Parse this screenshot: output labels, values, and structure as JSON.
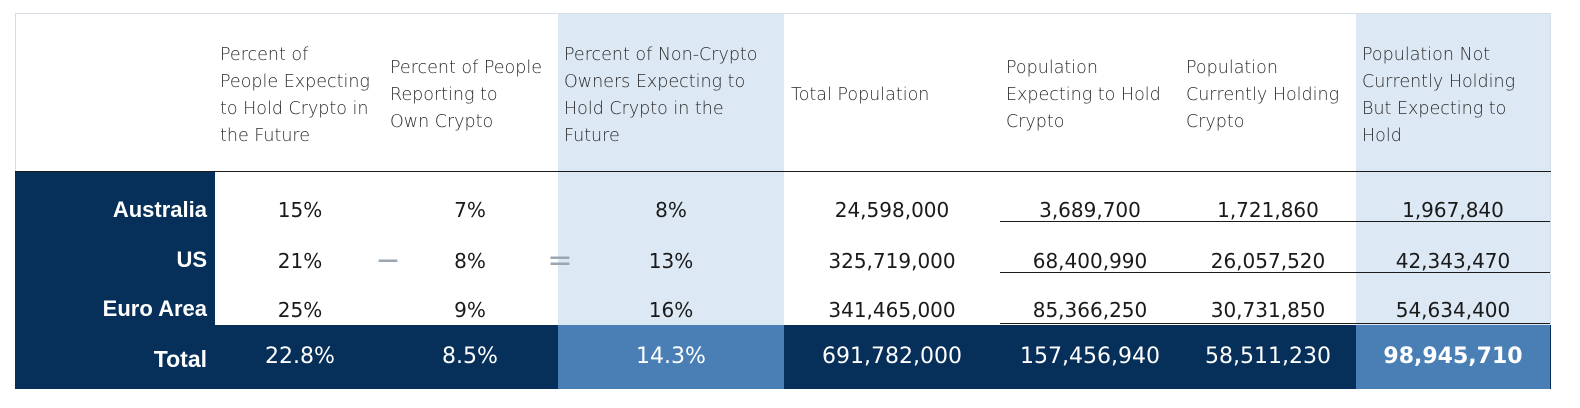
{
  "headers": [
    "",
    "Percent of People Expecting to Hold Crypto in the Future",
    "Percent of People Reporting to Own Crypto",
    "Percent of Non-Crypto Owners Expecting to Hold Crypto in the Future",
    "Total Population",
    "Population Expecting to Hold Crypto",
    "Population Currently Holding Crypto",
    "Population Not Currently Holding But Expecting to Hold"
  ],
  "header_lines": {
    "c1": [
      "Percent of",
      "People Expecting",
      "to Hold Crypto in",
      "the Future"
    ],
    "c2": [
      "Percent of People",
      "Reporting to",
      "Own Crypto"
    ],
    "c3": [
      "Percent of Non-Crypto",
      "Owners Expecting to",
      "Hold Crypto in the",
      "Future"
    ],
    "c4": [
      "Total Population"
    ],
    "c5": [
      "Population",
      "Expecting to Hold",
      "Crypto"
    ],
    "c6": [
      "Population",
      "Currently Holding",
      "Crypto"
    ],
    "c7": [
      "Population Not",
      "Currently Holding",
      "But Expecting to",
      "Hold"
    ]
  },
  "operators": {
    "minus": "−",
    "equals": "="
  },
  "rows": [
    {
      "label": "Australia",
      "c1": "15%",
      "c2": "7%",
      "c3": "8%",
      "c4": "24,598,000",
      "c5": "3,689,700",
      "c6": "1,721,860",
      "c7": "1,967,840"
    },
    {
      "label": "US",
      "c1": "21%",
      "c2": "8%",
      "c3": "13%",
      "c4": "325,719,000",
      "c5": "68,400,990",
      "c6": "26,057,520",
      "c7": "42,343,470"
    },
    {
      "label": "Euro Area",
      "c1": "25%",
      "c2": "9%",
      "c3": "16%",
      "c4": "341,465,000",
      "c5": "85,366,250",
      "c6": "30,731,850",
      "c7": "54,634,400"
    }
  ],
  "total": {
    "label": "Total",
    "c1": "22.8%",
    "c2": "8.5%",
    "c3": "14.3%",
    "c4": "691,782,000",
    "c5": "157,456,940",
    "c6": "58,511,230",
    "c7": "98,945,710"
  },
  "colors": {
    "navy": "#06305a",
    "shade": "#dce8f4",
    "mid_blue": "#4a7fb5"
  }
}
